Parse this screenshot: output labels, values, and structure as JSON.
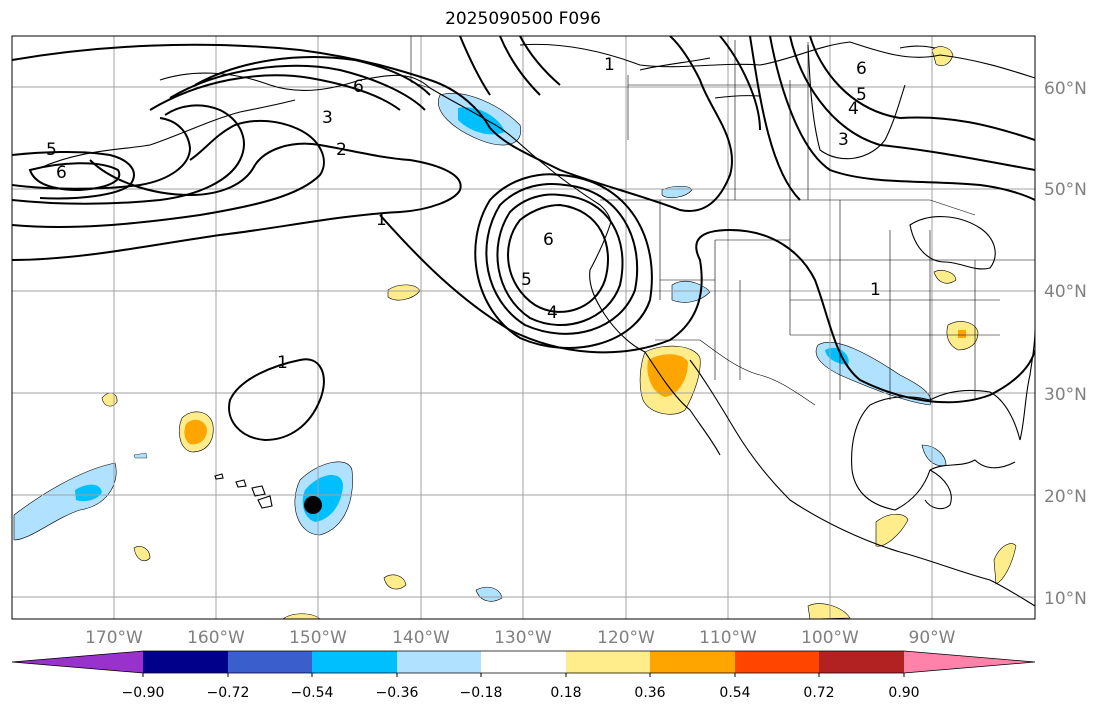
{
  "title": "2025090500 F096",
  "lon_labels": [
    "170°W",
    "160°W",
    "150°W",
    "140°W",
    "130°W",
    "120°W",
    "110°W",
    "100°W",
    "90°W"
  ],
  "lat_labels": [
    "60°N",
    "50°N",
    "40°N",
    "30°N",
    "20°N",
    "10°N"
  ],
  "contour_labels": [
    "1",
    "1",
    "1",
    "1",
    "2",
    "3",
    "3",
    "4",
    "4",
    "5",
    "5",
    "5",
    "6",
    "6",
    "6",
    "6"
  ],
  "colorbar": {
    "tick_labels": [
      "−0.90",
      "−0.72",
      "−0.54",
      "−0.36",
      "−0.18",
      "0.18",
      "0.36",
      "0.54",
      "0.72",
      "0.90"
    ],
    "colors": [
      "#9932cc",
      "#00008b",
      "#3a5fcd",
      "#00bfff",
      "#b0e2ff",
      "#ffffff",
      "#ffec8b",
      "#ffa500",
      "#ff4500",
      "#b22222",
      "#ff82ab"
    ]
  },
  "colors": {
    "grid": "#a0a0a0",
    "coast": "#000000",
    "contour": "#000000"
  }
}
